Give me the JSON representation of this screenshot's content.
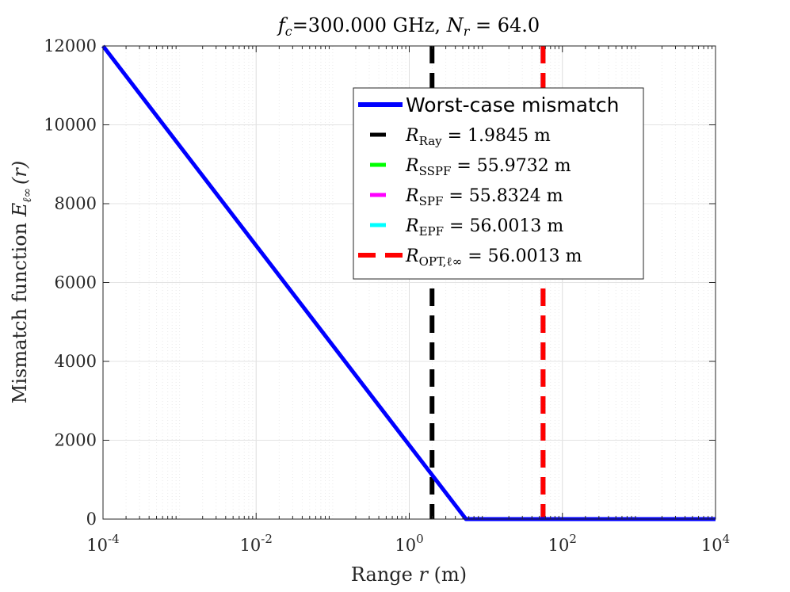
{
  "chart_data": {
    "type": "line",
    "title": "fc=300.000 GHz, Nr = 64.0",
    "title_parts": {
      "f": "f",
      "c": "c",
      "eq1": "=300.000 GHz, ",
      "N": "N",
      "r": "r",
      "eq2": " = 64.0"
    },
    "xlabel": "Range r (m)",
    "xlabel_parts": {
      "pre": "Range ",
      "var": "r",
      "post": " (m)"
    },
    "ylabel": "Mismatch function Eℓ∞(r)",
    "ylabel_parts": {
      "pre": "Mismatch function ",
      "E": "E",
      "sub": "ℓ∞",
      "arg": "(r)"
    },
    "xscale": "log",
    "xlim": [
      0.0001,
      10000
    ],
    "ylim": [
      0,
      12000
    ],
    "x_ticks": [
      {
        "base": "10",
        "exp": "-4",
        "value": 0.0001
      },
      {
        "base": "10",
        "exp": "-2",
        "value": 0.01
      },
      {
        "base": "10",
        "exp": "0",
        "value": 1
      },
      {
        "base": "10",
        "exp": "2",
        "value": 100
      },
      {
        "base": "10",
        "exp": "4",
        "value": 10000
      }
    ],
    "y_ticks": [
      "0",
      "2000",
      "4000",
      "6000",
      "8000",
      "10000",
      "12000"
    ],
    "grid": true,
    "legend_position": "top-right",
    "series": [
      {
        "name": "Worst-case mismatch",
        "color": "#0000ff",
        "style": "solid",
        "x": [
          0.0001,
          5.5,
          10000
        ],
        "y": [
          12000,
          0,
          0
        ]
      },
      {
        "name": "R_Ray = 1.9845 m",
        "color": "#000000",
        "style": "dashed",
        "x_value": 1.9845
      },
      {
        "name": "R_SSPF = 55.9732 m",
        "color": "#00ff00",
        "style": "dashed",
        "x_value": 55.9732
      },
      {
        "name": "R_SPF = 55.8324 m",
        "color": "#ff00ff",
        "style": "dashed",
        "x_value": 55.8324
      },
      {
        "name": "R_EPF = 56.0013 m",
        "color": "#00ffff",
        "style": "dashed",
        "x_value": 56.0013
      },
      {
        "name": "R_OPT,l∞ = 56.0013 m",
        "color": "#ff0000",
        "style": "dashed",
        "x_value": 56.0013
      }
    ],
    "legend": [
      {
        "label_sans": "Worst-case mismatch",
        "color": "#0000ff",
        "style": "solid"
      },
      {
        "sym": "R",
        "sub": "Ray",
        "rest": " = 1.9845 m",
        "color": "#000000",
        "style": "dashed"
      },
      {
        "sym": "R",
        "sub": "SSPF",
        "rest": " = 55.9732 m",
        "color": "#00ff00",
        "style": "dashed"
      },
      {
        "sym": "R",
        "sub": "SPF",
        "rest": " = 55.8324 m",
        "color": "#ff00ff",
        "style": "dashed"
      },
      {
        "sym": "R",
        "sub": "EPF",
        "rest": " = 56.0013 m",
        "color": "#00ffff",
        "style": "dashed"
      },
      {
        "sym": "R",
        "sub": "OPT,ℓ∞",
        "rest": " = 56.0013 m",
        "color": "#ff0000",
        "style": "dashed"
      }
    ]
  }
}
